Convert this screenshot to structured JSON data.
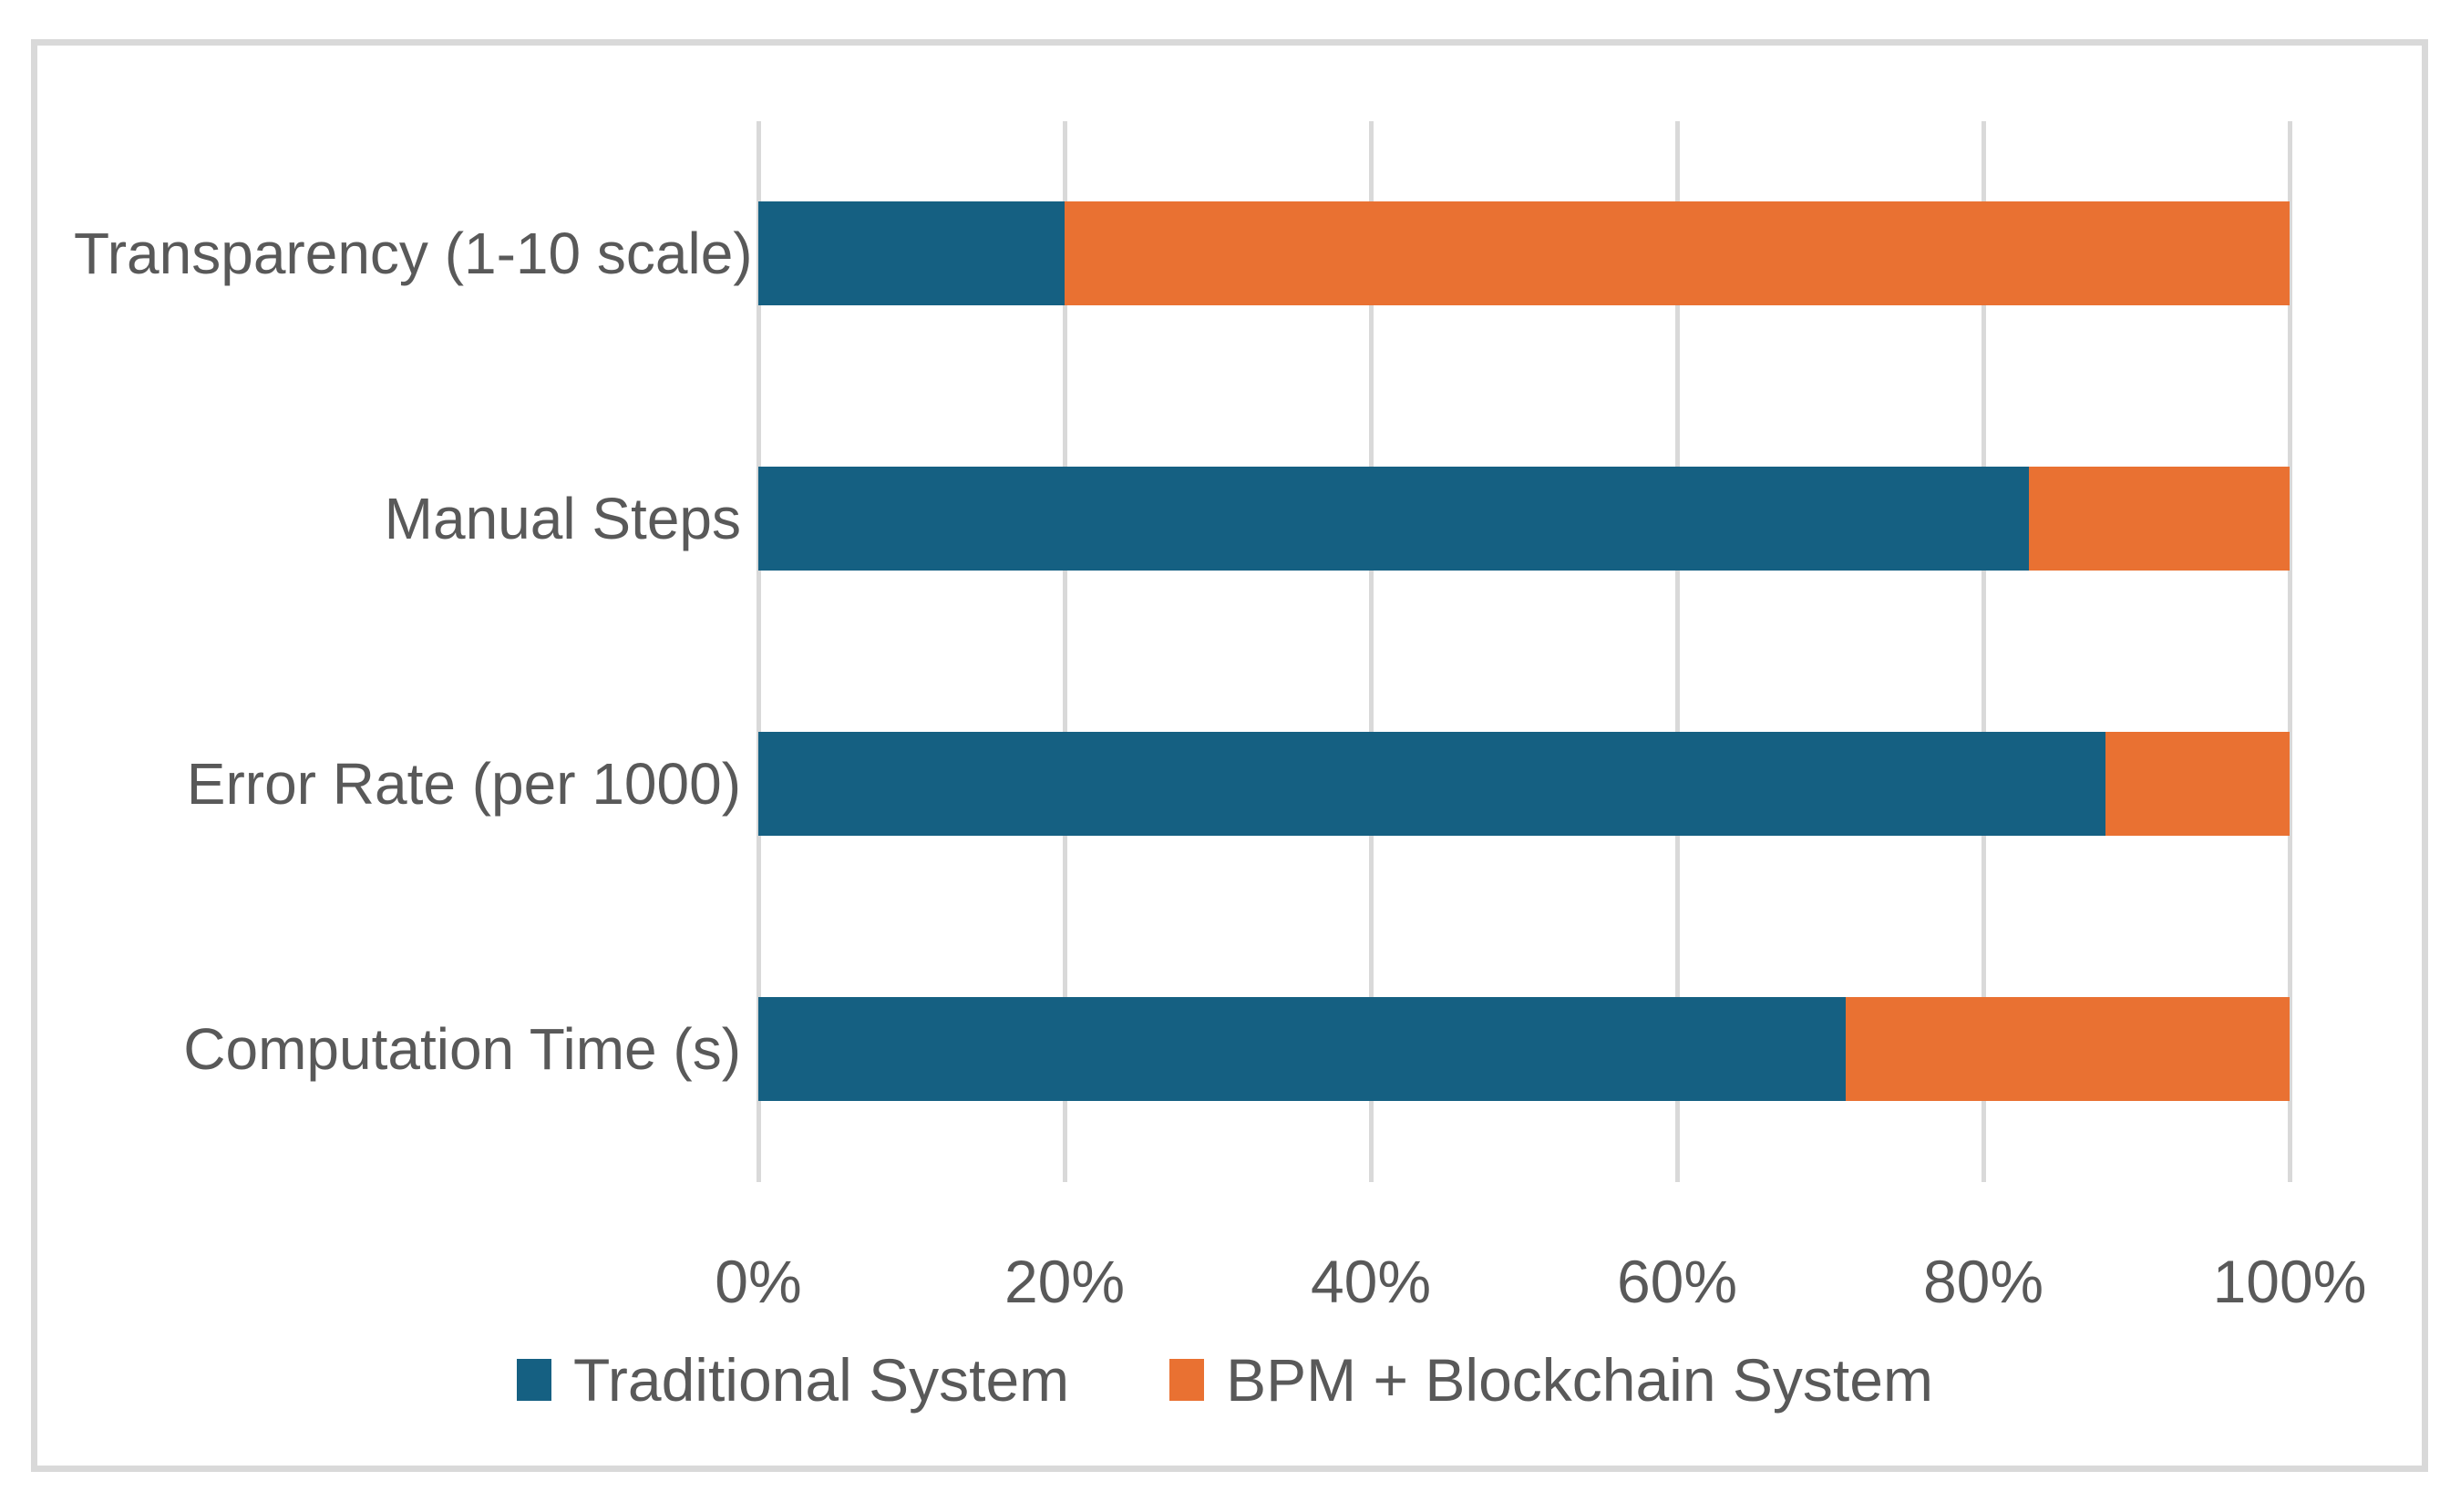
{
  "chart_data": {
    "type": "bar",
    "orientation": "horizontal",
    "stacked_percent": true,
    "title": "",
    "xlabel": "",
    "ylabel": "",
    "categories": [
      "Transparency (1-10 scale)",
      "Manual Steps",
      "Error Rate (per 1000)",
      "Computation Time (s)"
    ],
    "series": [
      {
        "name": "Traditional System",
        "color": "#156082",
        "values": [
          20,
          83,
          88,
          71
        ]
      },
      {
        "name": "BPM + Blockchain System",
        "color": "#E97132",
        "values": [
          80,
          17,
          12,
          29
        ]
      }
    ],
    "x_ticks": [
      "0%",
      "20%",
      "40%",
      "60%",
      "80%",
      "100%"
    ],
    "xlim": [
      0,
      100
    ],
    "grid": true,
    "gridline_color": "#D9D9D9",
    "legend_position": "bottom"
  },
  "style": {
    "frame_border_color": "#D9D9D9",
    "axis_text_color": "#595959",
    "background_color": "#FFFFFF"
  }
}
